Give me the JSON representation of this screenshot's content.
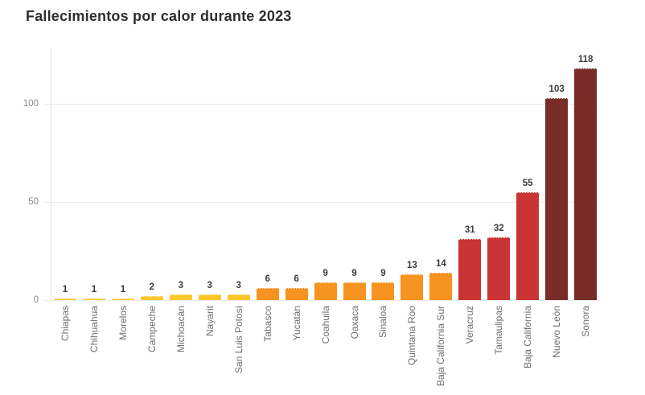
{
  "chart_data": {
    "type": "bar",
    "title": "Fallecimientos por calor durante 2023",
    "xlabel": "",
    "ylabel": "",
    "ylim": [
      0,
      128
    ],
    "yticks": [
      0,
      50,
      100
    ],
    "grid": true,
    "legend": false,
    "categories": [
      "Chiapas",
      "Chihuahua",
      "Morelos",
      "Campeche",
      "Michoacán",
      "Nayarit",
      "San Luis Potosí",
      "Tabasco",
      "Yucatán",
      "Coahuila",
      "Oaxaca",
      "Sinaloa",
      "Quintana Roo",
      "Baja California Sur",
      "Veracruz",
      "Tamaulipas",
      "Baja California",
      "Nuevo León",
      "Sonora"
    ],
    "values": [
      1,
      1,
      1,
      2,
      3,
      3,
      3,
      6,
      6,
      9,
      9,
      9,
      13,
      14,
      31,
      32,
      55,
      103,
      118
    ],
    "bar_colors": [
      "#FCC62B",
      "#FCC62B",
      "#FCC62B",
      "#FCC62B",
      "#FCC62B",
      "#FCC62B",
      "#FCC62B",
      "#F79320",
      "#F79320",
      "#F79320",
      "#F79320",
      "#F79320",
      "#F79320",
      "#F79320",
      "#C93434",
      "#C93434",
      "#C93434",
      "#7A2C29",
      "#7A2C29"
    ],
    "palette": {
      "low": "#FCC62B",
      "medium": "#F79320",
      "high": "#C93434",
      "highest": "#7A2C29"
    }
  }
}
